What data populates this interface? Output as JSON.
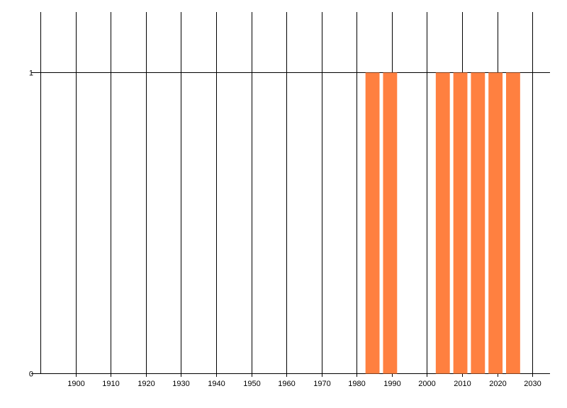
{
  "chart_data": {
    "type": "bar",
    "title": "",
    "xlabel": "",
    "ylabel": "",
    "x": [
      1984.5,
      1989.5,
      2004.5,
      2009.5,
      2014.5,
      2019.5,
      2024.5
    ],
    "values": [
      1,
      1,
      1,
      1,
      1,
      1,
      1
    ],
    "bar_width_years": 4,
    "xlim": [
      1890,
      2035
    ],
    "ylim": [
      0,
      1.2
    ],
    "xticks": [
      1900,
      1910,
      1920,
      1930,
      1940,
      1950,
      1960,
      1970,
      1980,
      1990,
      2000,
      2010,
      2020,
      2030
    ],
    "yticks": [
      0,
      1
    ],
    "grid": true,
    "bar_color": "#FF8040",
    "grid_color": "#000000"
  }
}
